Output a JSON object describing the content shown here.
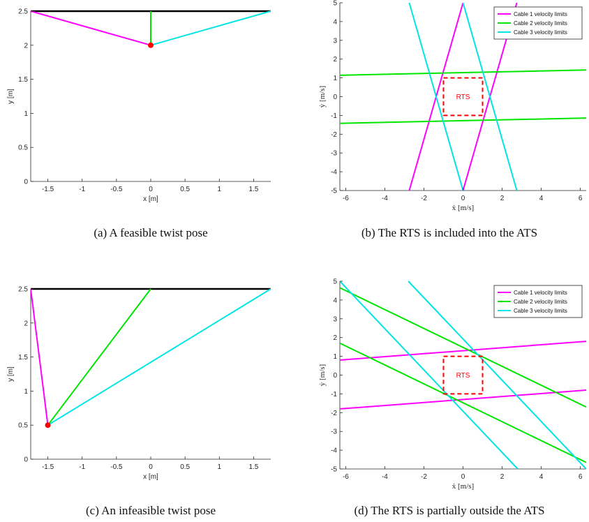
{
  "chart_data": [
    {
      "id": "a",
      "type": "line",
      "caption": "(a) A feasible twist pose",
      "xlabel": "x [m]",
      "ylabel": "y [m]",
      "xlim": [
        -1.75,
        1.75
      ],
      "ylim": [
        0,
        2.5
      ],
      "xticks": [
        -1.5,
        -1,
        -0.5,
        0,
        0.5,
        1,
        1.5
      ],
      "xtick_labels": [
        "-1.5",
        "-1",
        "-0.5",
        "0",
        "0.5",
        "1",
        "1.5"
      ],
      "yticks": [
        0,
        0.5,
        1,
        1.5,
        2,
        2.5
      ],
      "ytick_labels": [
        "0",
        "0.5",
        "1",
        "1.5",
        "2",
        "2.5"
      ],
      "base": {
        "color": "#000000",
        "points": [
          [
            -1.75,
            2.5
          ],
          [
            1.75,
            2.5
          ]
        ]
      },
      "cables": [
        {
          "color": "#ff00ff",
          "points": [
            [
              -1.75,
              2.5
            ],
            [
              0,
              2
            ]
          ]
        },
        {
          "color": "#00e600",
          "points": [
            [
              0,
              2.5
            ],
            [
              0,
              2
            ]
          ]
        },
        {
          "color": "#00e5e5",
          "points": [
            [
              1.75,
              2.5
            ],
            [
              0,
              2
            ]
          ]
        }
      ],
      "end_effector": {
        "x": 0,
        "y": 2,
        "color": "#ff0000"
      }
    },
    {
      "id": "b",
      "type": "line",
      "caption": "(b) The RTS is included into the ATS",
      "xlabel": "ẋ [m/s]",
      "ylabel": "ẏ [m/s]",
      "xlim": [
        -6.3,
        6.3
      ],
      "ylim": [
        -5,
        5
      ],
      "xticks": [
        -6,
        -4,
        -2,
        0,
        2,
        4,
        6
      ],
      "xtick_labels": [
        "-6",
        "-4",
        "-2",
        "0",
        "2",
        "4",
        "6"
      ],
      "yticks": [
        -5,
        -4,
        -3,
        -2,
        -1,
        0,
        1,
        2,
        3,
        4,
        5
      ],
      "ytick_labels": [
        "-5",
        "-4",
        "-3",
        "-2",
        "-1",
        "0",
        "1",
        "2",
        "3",
        "4",
        "5"
      ],
      "legend": {
        "position": "top-right",
        "entries": [
          {
            "label": "Cable 1 velocity limits",
            "color": "#ff00ff"
          },
          {
            "label": "Cable 2 velocity limits",
            "color": "#00e600"
          },
          {
            "label": "Cable 3 velocity limits",
            "color": "#00e5e5"
          }
        ]
      },
      "series": [
        {
          "color": "#ff00ff",
          "x": [
            -2.75,
            0
          ],
          "y": [
            -5,
            5
          ]
        },
        {
          "color": "#ff00ff",
          "x": [
            0,
            2.75
          ],
          "y": [
            -5,
            5
          ]
        },
        {
          "color": "#00e600",
          "x": [
            -6.3,
            6.3
          ],
          "y": [
            1.14,
            1.42
          ]
        },
        {
          "color": "#00e600",
          "x": [
            -6.3,
            6.3
          ],
          "y": [
            -1.42,
            -1.14
          ]
        },
        {
          "color": "#00e5e5",
          "x": [
            -2.75,
            0
          ],
          "y": [
            5,
            -5
          ]
        },
        {
          "color": "#00e5e5",
          "x": [
            0,
            2.75
          ],
          "y": [
            5,
            -5
          ]
        }
      ],
      "rts": {
        "label": "RTS",
        "x": [
          -1,
          1
        ],
        "y": [
          -1,
          1
        ],
        "color": "#ff0000"
      }
    },
    {
      "id": "c",
      "type": "line",
      "caption": "(c) An infeasible twist pose",
      "xlabel": "x [m]",
      "ylabel": "y [m]",
      "xlim": [
        -1.75,
        1.75
      ],
      "ylim": [
        0,
        2.5
      ],
      "xticks": [
        -1.5,
        -1,
        -0.5,
        0,
        0.5,
        1,
        1.5
      ],
      "xtick_labels": [
        "-1.5",
        "-1",
        "-0.5",
        "0",
        "0.5",
        "1",
        "1.5"
      ],
      "yticks": [
        0,
        0.5,
        1,
        1.5,
        2,
        2.5
      ],
      "ytick_labels": [
        "0",
        "0.5",
        "1",
        "1.5",
        "2",
        "2.5"
      ],
      "base": {
        "color": "#000000",
        "points": [
          [
            -1.75,
            2.5
          ],
          [
            1.75,
            2.5
          ]
        ]
      },
      "cables": [
        {
          "color": "#ff00ff",
          "points": [
            [
              -1.75,
              2.5
            ],
            [
              -1.5,
              0.5
            ]
          ]
        },
        {
          "color": "#00e600",
          "points": [
            [
              0,
              2.5
            ],
            [
              -1.5,
              0.5
            ]
          ]
        },
        {
          "color": "#00e5e5",
          "points": [
            [
              1.75,
              2.5
            ],
            [
              -1.5,
              0.5
            ]
          ]
        }
      ],
      "end_effector": {
        "x": -1.5,
        "y": 0.5,
        "color": "#ff0000"
      }
    },
    {
      "id": "d",
      "type": "line",
      "caption": "(d) The RTS is partially outside the ATS",
      "xlabel": "ẋ [m/s]",
      "ylabel": "ẏ [m/s]",
      "xlim": [
        -6.3,
        6.3
      ],
      "ylim": [
        -5,
        5
      ],
      "xticks": [
        -6,
        -4,
        -2,
        0,
        2,
        4,
        6
      ],
      "xtick_labels": [
        "-6",
        "-4",
        "-2",
        "0",
        "2",
        "4",
        "6"
      ],
      "yticks": [
        -5,
        -4,
        -3,
        -2,
        -1,
        0,
        1,
        2,
        3,
        4,
        5
      ],
      "ytick_labels": [
        "-5",
        "-4",
        "-3",
        "-2",
        "-1",
        "0",
        "1",
        "2",
        "3",
        "4",
        "5"
      ],
      "legend": {
        "position": "top-right",
        "entries": [
          {
            "label": "Cable 1 velocity limits",
            "color": "#ff00ff"
          },
          {
            "label": "Cable 2 velocity limits",
            "color": "#00e600"
          },
          {
            "label": "Cable 3 velocity limits",
            "color": "#00e5e5"
          }
        ]
      },
      "series": [
        {
          "color": "#ff00ff",
          "x": [
            -6.3,
            6.3
          ],
          "y": [
            0.8,
            1.8
          ]
        },
        {
          "color": "#ff00ff",
          "x": [
            -6.3,
            6.3
          ],
          "y": [
            -1.8,
            -0.8
          ]
        },
        {
          "color": "#00e600",
          "x": [
            -6.3,
            6.3
          ],
          "y": [
            4.65,
            -1.7
          ]
        },
        {
          "color": "#00e600",
          "x": [
            -6.3,
            6.3
          ],
          "y": [
            1.7,
            -4.65
          ]
        },
        {
          "color": "#00e5e5",
          "x": [
            -6.3,
            2.8
          ],
          "y": [
            5,
            -5
          ]
        },
        {
          "color": "#00e5e5",
          "x": [
            -2.8,
            6.3
          ],
          "y": [
            5,
            -5
          ]
        }
      ],
      "rts": {
        "label": "RTS",
        "x": [
          -1,
          1
        ],
        "y": [
          -1,
          1
        ],
        "color": "#ff0000"
      }
    }
  ]
}
